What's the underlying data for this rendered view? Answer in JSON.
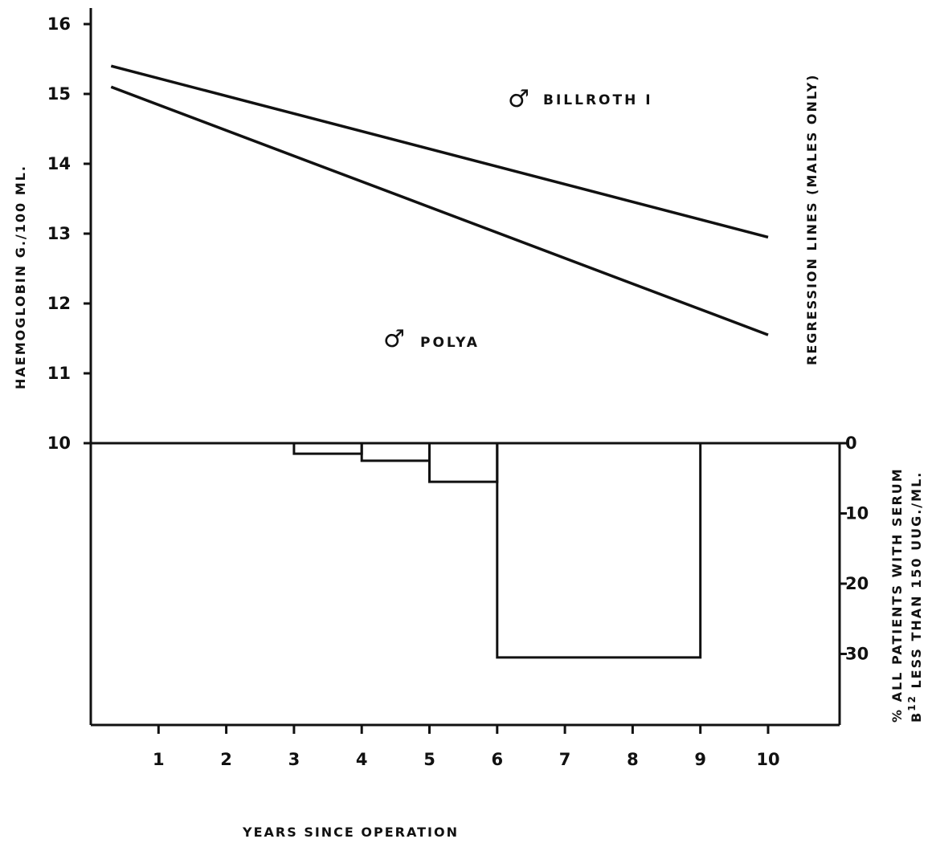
{
  "chart_data": {
    "type": "line",
    "x_label": "YEARS SINCE OPERATION",
    "x_ticks": [
      1,
      2,
      3,
      4,
      5,
      6,
      7,
      8,
      9,
      10
    ],
    "x_tick_labels": [
      "1",
      "2",
      "3",
      "4",
      "5",
      "6",
      "7",
      "8",
      "9",
      "10"
    ],
    "xlim": [
      0,
      11
    ],
    "top_panel": {
      "ylabel": "HAEMOGLOBIN  G./100 ML.",
      "ylim": [
        10,
        16
      ],
      "y_ticks": [
        10,
        11,
        12,
        13,
        14,
        15,
        16
      ],
      "y_tick_labels": [
        "10",
        "11",
        "12",
        "13",
        "14",
        "15",
        "16"
      ],
      "right_label": "REGRESSION LINES (MALES ONLY)",
      "series": [
        {
          "name": "BILLROTH I",
          "symbol": "♂",
          "x": [
            0.3,
            10
          ],
          "y": [
            15.4,
            12.95
          ]
        },
        {
          "name": "POLYA",
          "symbol": "♂",
          "x": [
            0.3,
            10
          ],
          "y": [
            15.1,
            11.55
          ]
        }
      ]
    },
    "bottom_panel": {
      "type": "bar",
      "ylabel_line1": "% ALL PATIENTS WITH SERUM",
      "ylabel_line2_prefix": "B",
      "ylabel_line2_sup": "12",
      "ylabel_line2_suffix": " LESS THAN 150 UUG./ML.",
      "ylim": [
        0,
        40
      ],
      "y_ticks": [
        0,
        10,
        20,
        30
      ],
      "y_tick_labels": [
        "0",
        "10",
        "20",
        "30"
      ],
      "inverted": true,
      "bins": [
        {
          "x0": 3,
          "x1": 4,
          "value": 1.5
        },
        {
          "x0": 4,
          "x1": 5,
          "value": 2.5
        },
        {
          "x0": 5,
          "x1": 6,
          "value": 5.5
        },
        {
          "x0": 6,
          "x1": 9,
          "value": 30.5
        }
      ]
    }
  }
}
